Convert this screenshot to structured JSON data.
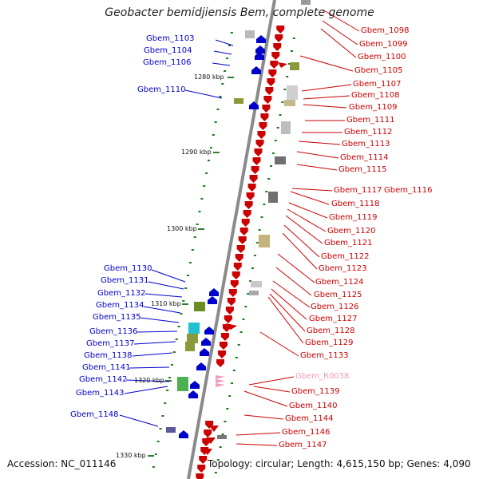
{
  "title": "Geobacter bemidjiensis Bem, complete genome",
  "footer": {
    "accession": "Accession: NC_011146",
    "summary": "Topology: circular; Length: 4,615,150 bp; Genes: 4,090"
  },
  "colors": {
    "minus_strand": "#0000cc",
    "plus_strand": "#cc0000",
    "rna": "#f29bbf",
    "backbone": "#8a8a8a"
  },
  "scale_ticks": [
    "1280 kbp",
    "1290 kbp",
    "1300 kbp",
    "1310 kbp",
    "1320 kbp",
    "1330 kbp"
  ],
  "left_labels": [
    "Gbem_1103",
    "Gbem_1104",
    "Gbem_1106",
    "Gbem_1110",
    "Gbem_1130",
    "Gbem_1131",
    "Gbem_1132",
    "Gbem_1134",
    "Gbem_1135",
    "Gbem_1136",
    "Gbem_1137",
    "Gbem_1138",
    "Gbem_1141",
    "Gbem_1142",
    "Gbem_1143",
    "Gbem_1148"
  ],
  "right_labels": [
    "Gbem_1098",
    "Gbem_1099",
    "Gbem_1100",
    "Gbem_1105",
    "Gbem_1107",
    "Gbem_1108",
    "Gbem_1109",
    "Gbem_1111",
    "Gbem_1112",
    "Gbem_1113",
    "Gbem_1114",
    "Gbem_1115",
    "Gbem_1117",
    "Gbem_1116",
    "Gbem_1118",
    "Gbem_1119",
    "Gbem_1120",
    "Gbem_1121",
    "Gbem_1122",
    "Gbem_1123",
    "Gbem_1124",
    "Gbem_1125",
    "Gbem_1126",
    "Gbem_1127",
    "Gbem_1128",
    "Gbem_1129",
    "Gbem_1133",
    "Gbem_R0038",
    "Gbem_1139",
    "Gbem_1140",
    "Gbem_1144",
    "Gbem_1146",
    "Gbem_1147"
  ]
}
